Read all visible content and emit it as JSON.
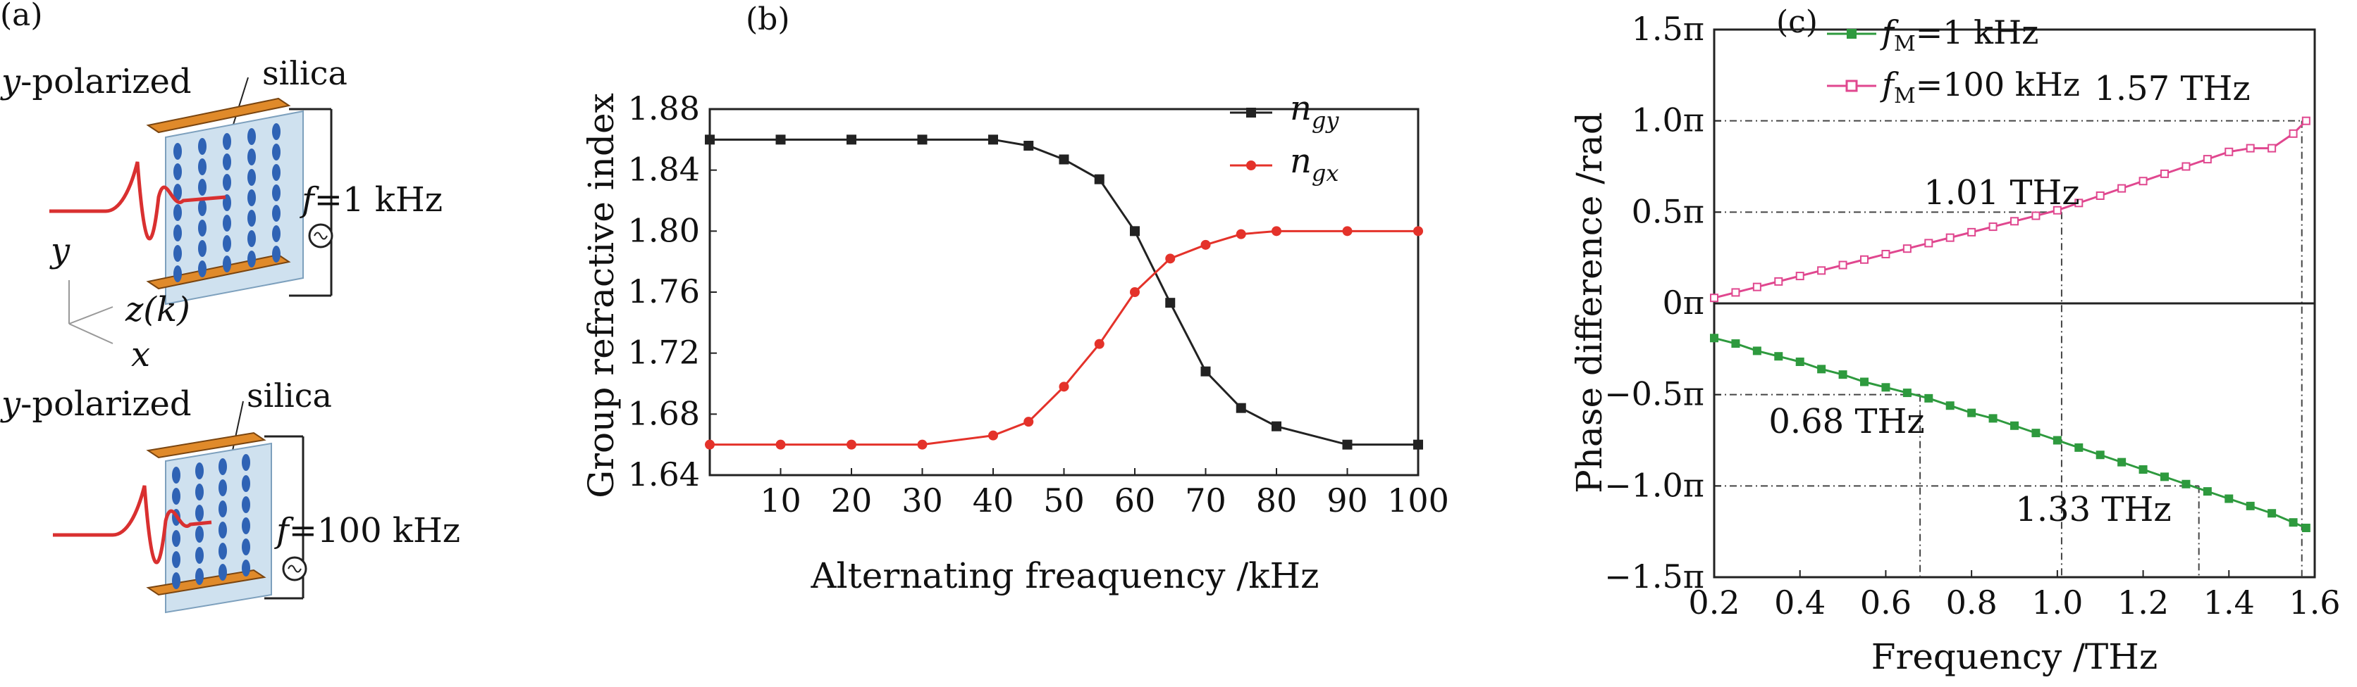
{
  "panel_a": {
    "label": "(a)",
    "top": {
      "polarization": "y-polarized",
      "material": "silica",
      "frequency": "f=1 kHz"
    },
    "bottom": {
      "polarization": "y-polarized",
      "material": "silica",
      "frequency": "f=100 kHz"
    },
    "axes": {
      "y": "y",
      "z": "z(k)",
      "x": "x"
    },
    "colors": {
      "electrode": "#e08a2a",
      "crystal_dot": "#2f63b5",
      "pulse": "#d93030",
      "plate": "#cfe1ef"
    }
  },
  "chart_data": [
    {
      "id": "b",
      "panel_label": "(b)",
      "type": "line",
      "xlabel": "Alternating freaquency /kHz",
      "ylabel": "Group refractive index",
      "xlim": [
        0,
        100
      ],
      "ylim": [
        1.64,
        1.88
      ],
      "xticks": [
        "10",
        "20",
        "30",
        "40",
        "50",
        "60",
        "70",
        "80",
        "90",
        "100"
      ],
      "yticks": [
        "1.64",
        "1.68",
        "1.72",
        "1.76",
        "1.80",
        "1.84",
        "1.88"
      ],
      "legend_position": "top-right",
      "series": [
        {
          "name": "ngy",
          "name_main": "n",
          "name_sub": "gy",
          "color": "#222222",
          "x": [
            0,
            10,
            20,
            30,
            40,
            45,
            50,
            55,
            60,
            65,
            70,
            75,
            80,
            90,
            100
          ],
          "y": [
            1.86,
            1.86,
            1.86,
            1.86,
            1.86,
            1.856,
            1.847,
            1.834,
            1.8,
            1.753,
            1.708,
            1.684,
            1.672,
            1.66,
            1.66
          ]
        },
        {
          "name": "ngx",
          "name_main": "n",
          "name_sub": "gx",
          "color": "#e4322a",
          "x": [
            0,
            10,
            20,
            30,
            40,
            45,
            50,
            55,
            60,
            65,
            70,
            75,
            80,
            90,
            100
          ],
          "y": [
            1.66,
            1.66,
            1.66,
            1.66,
            1.666,
            1.675,
            1.698,
            1.726,
            1.76,
            1.782,
            1.791,
            1.798,
            1.8,
            1.8,
            1.8
          ]
        }
      ]
    },
    {
      "id": "c",
      "panel_label": "(c)",
      "type": "line",
      "xlabel": "Frequency /THz",
      "ylabel": "Phase difference /rad",
      "xlim": [
        0.2,
        1.6
      ],
      "ylim": [
        -1.5,
        1.5
      ],
      "xticks": [
        "0.2",
        "0.4",
        "0.6",
        "0.8",
        "1.0",
        "1.2",
        "1.4",
        "1.6"
      ],
      "yticks": [
        "−1.5π",
        "−1.0π",
        "−0.5π",
        "0π",
        "0.5π",
        "1.0π",
        "1.5π"
      ],
      "legend_position": "top-left",
      "series": [
        {
          "name": "fM=1 kHz",
          "name_main": "f",
          "name_sub": "M",
          "name_rest": "=1 kHz",
          "color": "#2e9a3e",
          "marker": "filled-square",
          "x": [
            0.2,
            0.25,
            0.3,
            0.35,
            0.4,
            0.45,
            0.5,
            0.55,
            0.6,
            0.65,
            0.7,
            0.75,
            0.8,
            0.85,
            0.9,
            0.95,
            1.0,
            1.05,
            1.1,
            1.15,
            1.2,
            1.25,
            1.3,
            1.35,
            1.4,
            1.45,
            1.5,
            1.55,
            1.58
          ],
          "y": [
            -0.19,
            -0.22,
            -0.26,
            -0.29,
            -0.32,
            -0.36,
            -0.39,
            -0.43,
            -0.46,
            -0.49,
            -0.52,
            -0.56,
            -0.6,
            -0.63,
            -0.67,
            -0.71,
            -0.75,
            -0.79,
            -0.83,
            -0.87,
            -0.91,
            -0.95,
            -0.99,
            -1.03,
            -1.07,
            -1.11,
            -1.15,
            -1.2,
            -1.23
          ]
        },
        {
          "name": "fM=100 kHz",
          "name_main": "f",
          "name_sub": "M",
          "name_rest": "=100 kHz",
          "color": "#e0478f",
          "marker": "open-square",
          "x": [
            0.2,
            0.25,
            0.3,
            0.35,
            0.4,
            0.45,
            0.5,
            0.55,
            0.6,
            0.65,
            0.7,
            0.75,
            0.8,
            0.85,
            0.9,
            0.95,
            1.0,
            1.05,
            1.1,
            1.15,
            1.2,
            1.25,
            1.3,
            1.35,
            1.4,
            1.45,
            1.5,
            1.55,
            1.58
          ],
          "y": [
            0.03,
            0.06,
            0.09,
            0.12,
            0.15,
            0.18,
            0.21,
            0.24,
            0.27,
            0.3,
            0.33,
            0.36,
            0.39,
            0.42,
            0.45,
            0.48,
            0.51,
            0.55,
            0.59,
            0.63,
            0.67,
            0.71,
            0.75,
            0.79,
            0.83,
            0.85,
            0.85,
            0.93,
            1.0
          ]
        }
      ],
      "zero_line": 0,
      "reference_lines": {
        "horizontal": [
          1.0,
          0.5,
          -0.5,
          -1.0
        ],
        "vertical": [
          0.68,
          1.01,
          1.33,
          1.57
        ]
      },
      "annotations": [
        "1.57 THz",
        "1.01 THz",
        "0.68 THz",
        "1.33 THz"
      ]
    }
  ]
}
